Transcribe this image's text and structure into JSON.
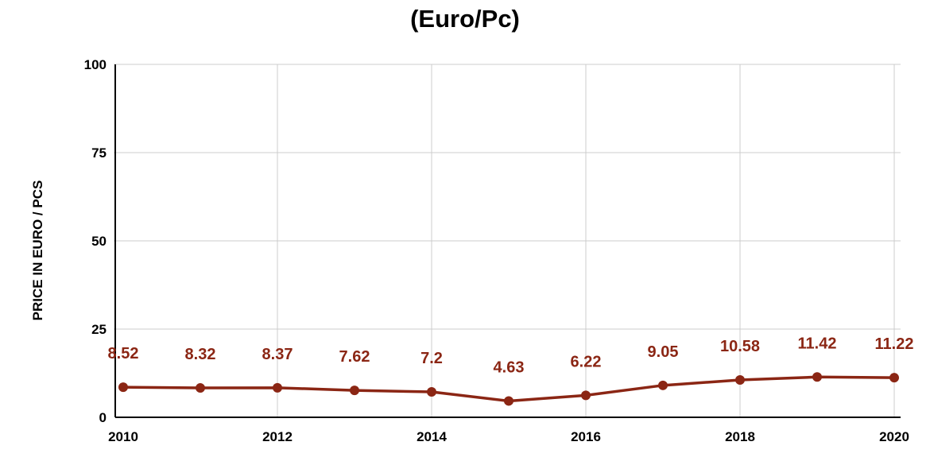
{
  "chart_data": {
    "type": "line",
    "title_lines": [
      "(Euro/Pc)"
    ],
    "ylabel": "PRICE IN EURO / PCS",
    "xlabel": "",
    "x": [
      2010,
      2011,
      2012,
      2013,
      2014,
      2015,
      2016,
      2017,
      2018,
      2019,
      2020
    ],
    "xticks": [
      "2010",
      "2012",
      "2014",
      "2016",
      "2018",
      "2020"
    ],
    "yticks": [
      "0",
      "25",
      "50",
      "75",
      "100"
    ],
    "xlim": [
      2010,
      2020
    ],
    "ylim": [
      0,
      100
    ],
    "grid": true,
    "series": [
      {
        "color": "#8b2614",
        "values": [
          8.52,
          8.32,
          8.37,
          7.62,
          7.2,
          4.63,
          6.22,
          9.05,
          10.58,
          11.42,
          11.22
        ],
        "labels": [
          "8.52",
          "8.32",
          "8.37",
          "7.62",
          "7.2",
          "4.63",
          "6.22",
          "9.05",
          "10.58",
          "11.42",
          "11.22"
        ]
      }
    ]
  }
}
